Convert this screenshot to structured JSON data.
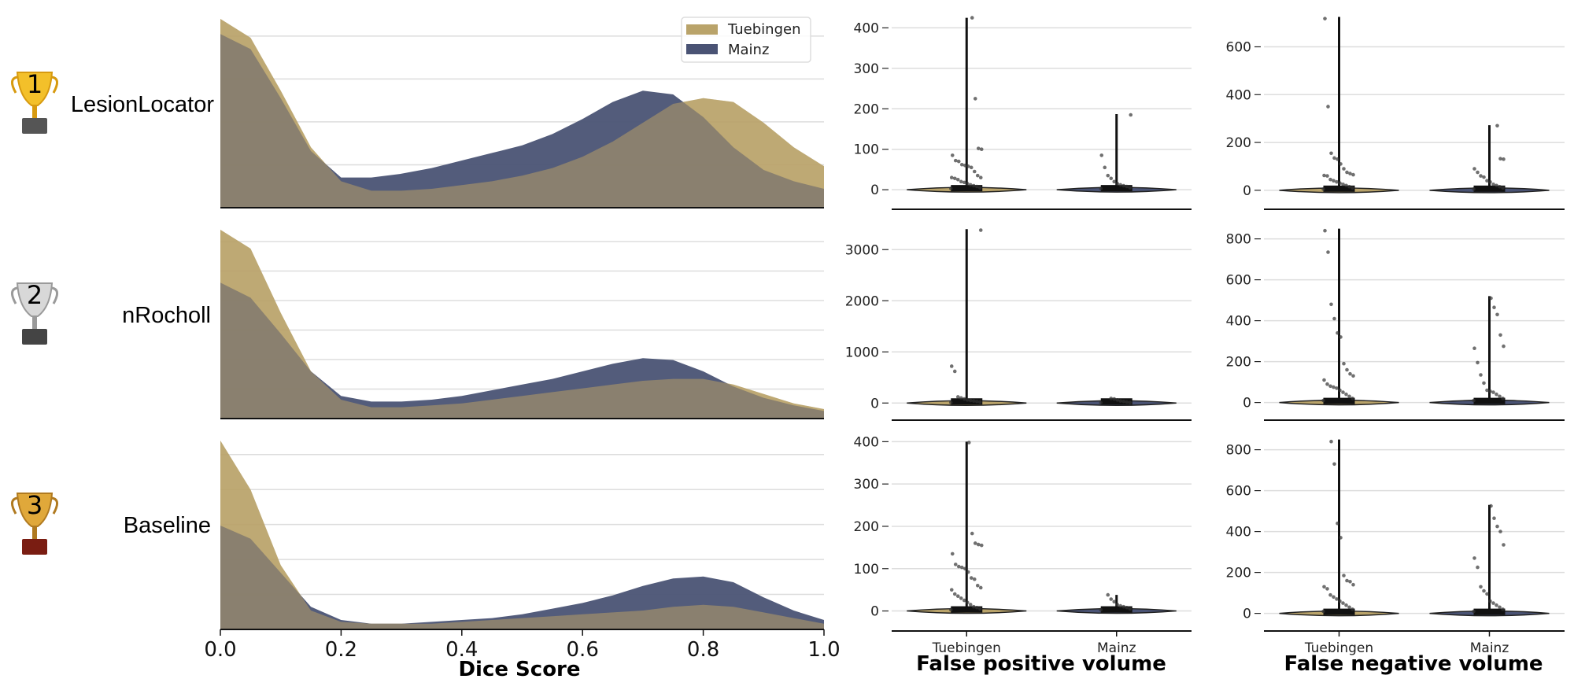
{
  "colors": {
    "tuebingen": "#b9a36a",
    "mainz": "#4a5374",
    "grid": "#dddddd",
    "axis": "#111111",
    "point": "#333333"
  },
  "rows": [
    {
      "rank": "1",
      "trophy": "gold-trophy",
      "method": "LesionLocator"
    },
    {
      "rank": "2",
      "trophy": "silver-trophy",
      "method": "nRocholl"
    },
    {
      "rank": "3",
      "trophy": "bronze-trophy",
      "method": "Baseline"
    }
  ],
  "legend": {
    "items": [
      {
        "label": "Tuebingen",
        "color_key": "tuebingen"
      },
      {
        "label": "Mainz",
        "color_key": "mainz"
      }
    ],
    "placement": "top-right"
  },
  "chart_data": [
    {
      "type": "area",
      "title": "Dice score density (KDE)",
      "xlabel": "Dice Score",
      "ylabel": "",
      "xlim": [
        0.0,
        1.0
      ],
      "xticks": [
        "0.0",
        "0.2",
        "0.4",
        "0.6",
        "0.8",
        "1.0"
      ],
      "grid": true,
      "legend": [
        "Tuebingen",
        "Mainz"
      ],
      "x": [
        0.0,
        0.05,
        0.1,
        0.15,
        0.2,
        0.25,
        0.3,
        0.35,
        0.4,
        0.45,
        0.5,
        0.55,
        0.6,
        0.65,
        0.7,
        0.75,
        0.8,
        0.85,
        0.9,
        0.95,
        1.0
      ],
      "panels": [
        {
          "method": "LesionLocator",
          "ymax": 1.0,
          "series": [
            {
              "name": "Tuebingen",
              "values": [
                1.0,
                0.9,
                0.62,
                0.32,
                0.14,
                0.09,
                0.09,
                0.1,
                0.12,
                0.14,
                0.17,
                0.21,
                0.27,
                0.35,
                0.45,
                0.55,
                0.58,
                0.56,
                0.45,
                0.32,
                0.22
              ]
            },
            {
              "name": "Mainz",
              "values": [
                0.92,
                0.84,
                0.58,
                0.3,
                0.16,
                0.16,
                0.18,
                0.21,
                0.25,
                0.29,
                0.33,
                0.39,
                0.47,
                0.56,
                0.62,
                0.6,
                0.48,
                0.32,
                0.2,
                0.14,
                0.1
              ]
            }
          ]
        },
        {
          "method": "nRocholl",
          "ymax": 1.0,
          "series": [
            {
              "name": "Tuebingen",
              "values": [
                1.0,
                0.9,
                0.56,
                0.25,
                0.1,
                0.06,
                0.06,
                0.07,
                0.08,
                0.1,
                0.12,
                0.14,
                0.16,
                0.18,
                0.2,
                0.21,
                0.21,
                0.18,
                0.13,
                0.08,
                0.05
              ]
            },
            {
              "name": "Mainz",
              "values": [
                0.72,
                0.64,
                0.45,
                0.25,
                0.12,
                0.09,
                0.09,
                0.1,
                0.12,
                0.15,
                0.18,
                0.21,
                0.25,
                0.29,
                0.32,
                0.31,
                0.25,
                0.17,
                0.11,
                0.07,
                0.04
              ]
            }
          ]
        },
        {
          "method": "Baseline",
          "ymax": 1.0,
          "series": [
            {
              "name": "Tuebingen",
              "values": [
                1.0,
                0.74,
                0.34,
                0.1,
                0.04,
                0.03,
                0.03,
                0.03,
                0.04,
                0.05,
                0.06,
                0.07,
                0.08,
                0.09,
                0.1,
                0.12,
                0.13,
                0.12,
                0.09,
                0.06,
                0.03
              ]
            },
            {
              "name": "Mainz",
              "values": [
                0.55,
                0.48,
                0.3,
                0.12,
                0.05,
                0.03,
                0.03,
                0.04,
                0.05,
                0.06,
                0.08,
                0.11,
                0.14,
                0.18,
                0.23,
                0.27,
                0.28,
                0.25,
                0.17,
                0.1,
                0.05
              ]
            }
          ]
        }
      ]
    },
    {
      "type": "scatter",
      "title": "False positive volume",
      "xlabel": "False positive volume",
      "categories": [
        "Tuebingen",
        "Mainz"
      ],
      "grid": true,
      "panels": [
        {
          "method": "LesionLocator",
          "ylim": [
            -25,
            430
          ],
          "yticks": [
            0,
            100,
            200,
            300,
            400
          ],
          "max": [
            425,
            187
          ],
          "points": [
            [
              3,
              5,
              8,
              10,
              12,
              15,
              18,
              20,
              25,
              28,
              30,
              30,
              35,
              45,
              55,
              58,
              60,
              62,
              70,
              72,
              85,
              100,
              102,
              225,
              425
            ],
            [
              3,
              5,
              8,
              10,
              12,
              15,
              20,
              28,
              35,
              55,
              85,
              185
            ]
          ]
        },
        {
          "method": "nRocholl",
          "ylim": [
            -150,
            3450
          ],
          "yticks": [
            0,
            1000,
            2000,
            3000
          ],
          "max": [
            3400,
            80
          ],
          "points": [
            [
              10,
              20,
              30,
              40,
              50,
              60,
              80,
              100,
              120,
              620,
              720,
              3380
            ],
            [
              5,
              10,
              20,
              30,
              40,
              60,
              80,
              90
            ]
          ]
        },
        {
          "method": "Baseline",
          "ylim": [
            -25,
            410
          ],
          "yticks": [
            0,
            100,
            200,
            300,
            400
          ],
          "max": [
            400,
            38
          ],
          "points": [
            [
              3,
              5,
              8,
              10,
              15,
              20,
              25,
              30,
              35,
              40,
              50,
              55,
              60,
              75,
              78,
              92,
              100,
              103,
              105,
              110,
              135,
              155,
              157,
              160,
              183,
              398
            ],
            [
              3,
              5,
              8,
              10,
              12,
              15,
              22,
              28,
              38
            ]
          ]
        }
      ]
    },
    {
      "type": "scatter",
      "title": "False negative volume",
      "xlabel": "False negative volume",
      "categories": [
        "Tuebingen",
        "Mainz"
      ],
      "grid": true,
      "panels": [
        {
          "method": "LesionLocator",
          "ylim": [
            -40,
            730
          ],
          "yticks": [
            0,
            200,
            400,
            600
          ],
          "max": [
            725,
            272
          ],
          "points": [
            [
              5,
              10,
              15,
              20,
              25,
              30,
              35,
              40,
              45,
              60,
              62,
              65,
              70,
              75,
              90,
              110,
              130,
              135,
              155,
              350,
              718
            ],
            [
              5,
              10,
              15,
              20,
              25,
              35,
              40,
              55,
              60,
              75,
              90,
              130,
              132,
              270
            ]
          ]
        },
        {
          "method": "nRocholl",
          "ylim": [
            -40,
            860
          ],
          "yticks": [
            0,
            200,
            400,
            600,
            800
          ],
          "max": [
            850,
            520
          ],
          "points": [
            [
              10,
              20,
              30,
              40,
              50,
              60,
              70,
              75,
              80,
              90,
              110,
              130,
              140,
              160,
              190,
              320,
              340,
              410,
              480,
              735,
              840
            ],
            [
              10,
              20,
              30,
              40,
              50,
              55,
              60,
              95,
              135,
              195,
              265,
              275,
              330,
              430,
              465,
              510
            ]
          ]
        },
        {
          "method": "Baseline",
          "ylim": [
            -40,
            860
          ],
          "yticks": [
            0,
            200,
            400,
            600,
            800
          ],
          "max": [
            850,
            530
          ],
          "points": [
            [
              10,
              20,
              30,
              40,
              50,
              60,
              70,
              80,
              90,
              120,
              130,
              140,
              155,
              160,
              185,
              370,
              440,
              730,
              840
            ],
            [
              10,
              20,
              30,
              40,
              50,
              60,
              95,
              110,
              130,
              225,
              270,
              335,
              400,
              425,
              465,
              525
            ]
          ]
        }
      ]
    }
  ]
}
